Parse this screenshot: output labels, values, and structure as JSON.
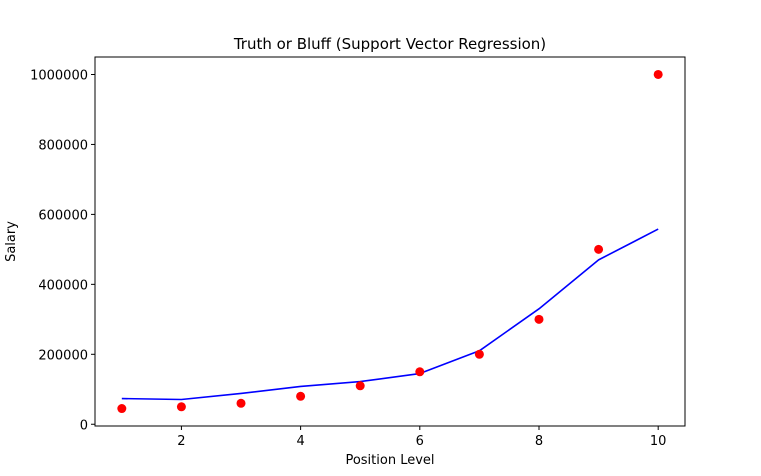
{
  "chart_data": {
    "type": "scatter",
    "title": "Truth or Bluff (Support Vector Regression)",
    "xlabel": "Position Level",
    "ylabel": "Salary",
    "xlim": [
      0.55,
      10.45
    ],
    "ylim": [
      -5000,
      1050000
    ],
    "x_ticks": [
      2,
      4,
      6,
      8,
      10
    ],
    "y_ticks": [
      0,
      200000,
      400000,
      600000,
      800000,
      1000000
    ],
    "x_tick_labels": [
      "2",
      "4",
      "6",
      "8",
      "10"
    ],
    "y_tick_labels": [
      "0",
      "200000",
      "400000",
      "600000",
      "800000",
      "1000000"
    ],
    "grid": false,
    "series": [
      {
        "kind": "scatter",
        "color": "#ff0000",
        "x": [
          1,
          2,
          3,
          4,
          5,
          6,
          7,
          8,
          9,
          10
        ],
        "y": [
          45000,
          50000,
          60000,
          80000,
          110000,
          150000,
          200000,
          300000,
          500000,
          1000000
        ]
      },
      {
        "kind": "line",
        "color": "#0000ff",
        "x": [
          1,
          2,
          3,
          4,
          5,
          6,
          7,
          8,
          9,
          10
        ],
        "y": [
          73500,
          70800,
          88000,
          108000,
          122000,
          145000,
          210000,
          330000,
          470000,
          558000
        ]
      }
    ]
  }
}
